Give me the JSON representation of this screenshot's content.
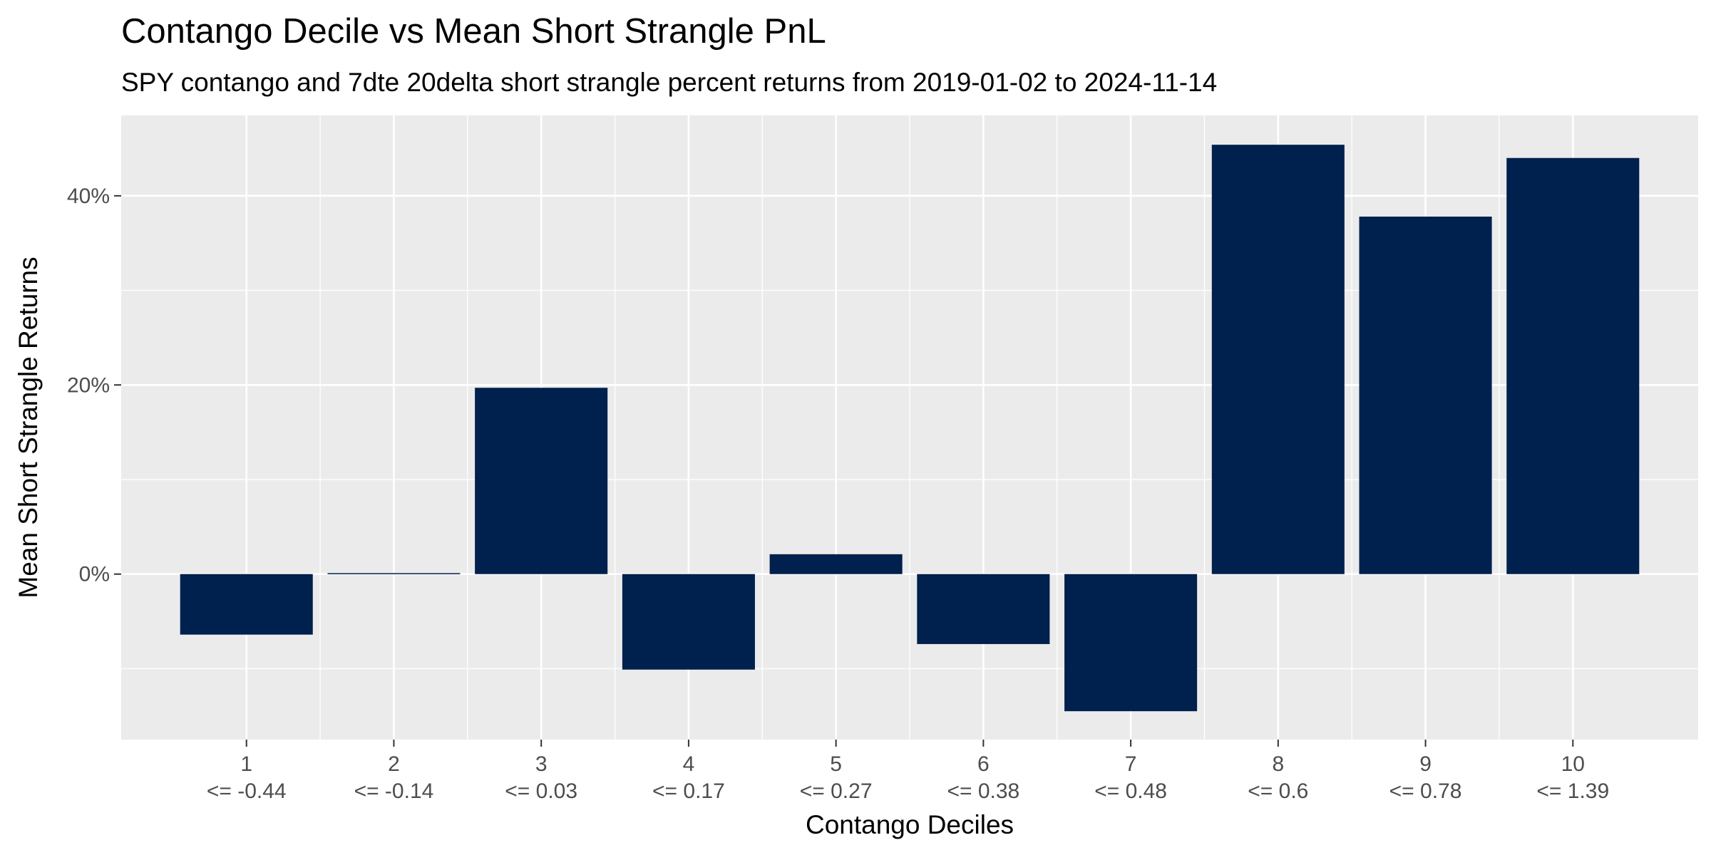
{
  "chart_data": {
    "type": "bar",
    "title": "Contango Decile vs Mean Short Strangle PnL",
    "subtitle": "SPY contango and 7dte 20delta short strangle percent returns from 2019-01-02 to 2024-11-14",
    "xlabel": "Contango Deciles",
    "ylabel": "Mean Short Strangle Returns",
    "categories": [
      "1",
      "2",
      "3",
      "4",
      "5",
      "6",
      "7",
      "8",
      "9",
      "10"
    ],
    "category_sublabels": [
      "<= -0.44",
      "<= -0.14",
      "<= 0.03",
      "<= 0.17",
      "<= 0.27",
      "<= 0.38",
      "<= 0.48",
      "<= 0.6",
      "<= 0.78",
      "<= 1.39"
    ],
    "values": [
      -6.4,
      0.1,
      19.7,
      -10.1,
      2.1,
      -7.4,
      -14.5,
      45.4,
      37.8,
      44.0
    ],
    "value_unit": "%",
    "ylim": [
      -17.5,
      48.5
    ],
    "yticks": [
      0,
      20,
      40
    ],
    "ytick_labels": [
      "0%",
      "20%",
      "40%"
    ],
    "grid": true,
    "colors": {
      "bar": "#00204d",
      "panel": "#ebebeb",
      "grid": "#ffffff",
      "tick_text": "#4d4d4d"
    }
  }
}
